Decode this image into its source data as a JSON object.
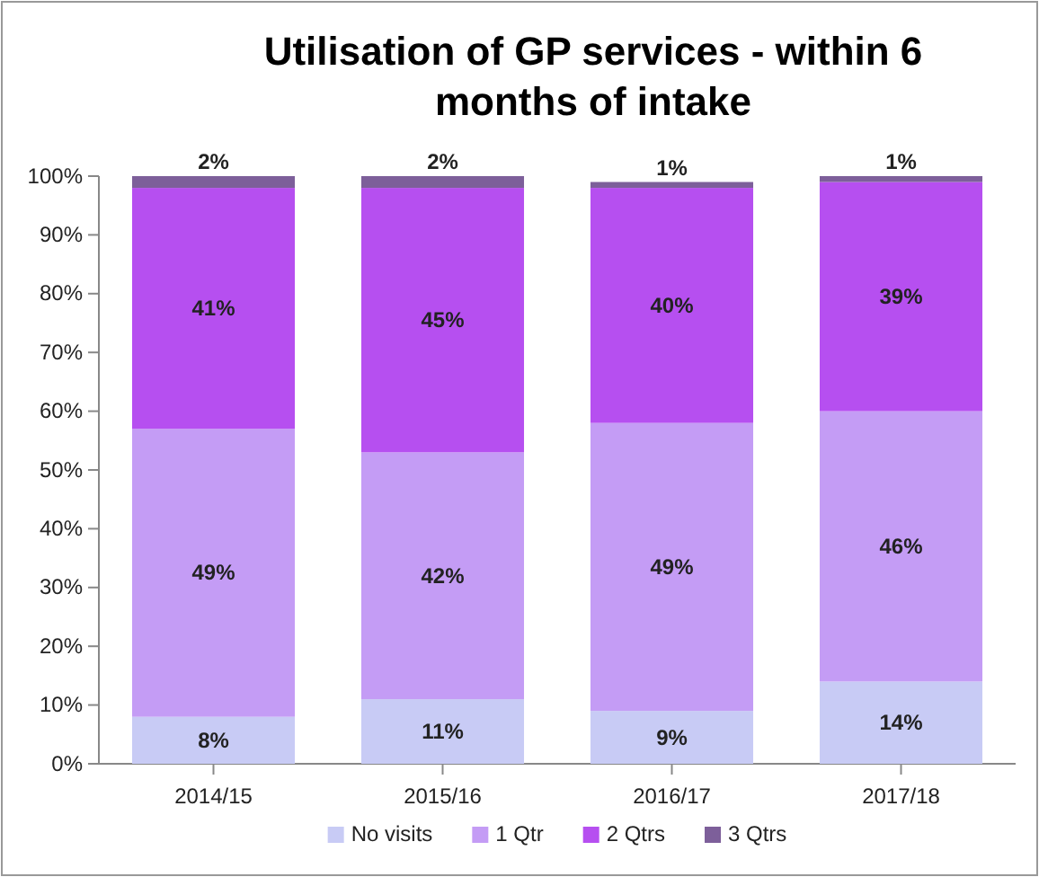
{
  "chart_data": {
    "type": "bar",
    "stacked": true,
    "title": "Utilisation of GP services - within 6 months of intake",
    "categories": [
      "2014/15",
      "2015/16",
      "2016/17",
      "2017/18"
    ],
    "series": [
      {
        "name": "No visits",
        "color": "#c8cbf5",
        "values": [
          8,
          11,
          9,
          14
        ],
        "value_labels": [
          "8%",
          "11%",
          "9%",
          "14%"
        ]
      },
      {
        "name": "1 Qtr",
        "color": "#c49cf5",
        "values": [
          49,
          42,
          49,
          46
        ],
        "value_labels": [
          "49%",
          "42%",
          "49%",
          "46%"
        ]
      },
      {
        "name": "2 Qtrs",
        "color": "#b64ff0",
        "values": [
          41,
          45,
          40,
          39
        ],
        "value_labels": [
          "41%",
          "45%",
          "40%",
          "39%"
        ]
      },
      {
        "name": "3 Qtrs",
        "color": "#7d5f9a",
        "values": [
          2,
          2,
          1,
          1
        ],
        "value_labels": [
          "2%",
          "2%",
          "1%",
          "1%"
        ]
      }
    ],
    "ylim": [
      0,
      100
    ],
    "yticks": [
      {
        "value": 0,
        "label": "0%"
      },
      {
        "value": 10,
        "label": "10%"
      },
      {
        "value": 20,
        "label": "20%"
      },
      {
        "value": 30,
        "label": "30%"
      },
      {
        "value": 40,
        "label": "40%"
      },
      {
        "value": 50,
        "label": "50%"
      },
      {
        "value": 60,
        "label": "60%"
      },
      {
        "value": 70,
        "label": "70%"
      },
      {
        "value": 80,
        "label": "80%"
      },
      {
        "value": 90,
        "label": "90%"
      },
      {
        "value": 100,
        "label": "100%"
      }
    ],
    "legend": "bottom"
  }
}
